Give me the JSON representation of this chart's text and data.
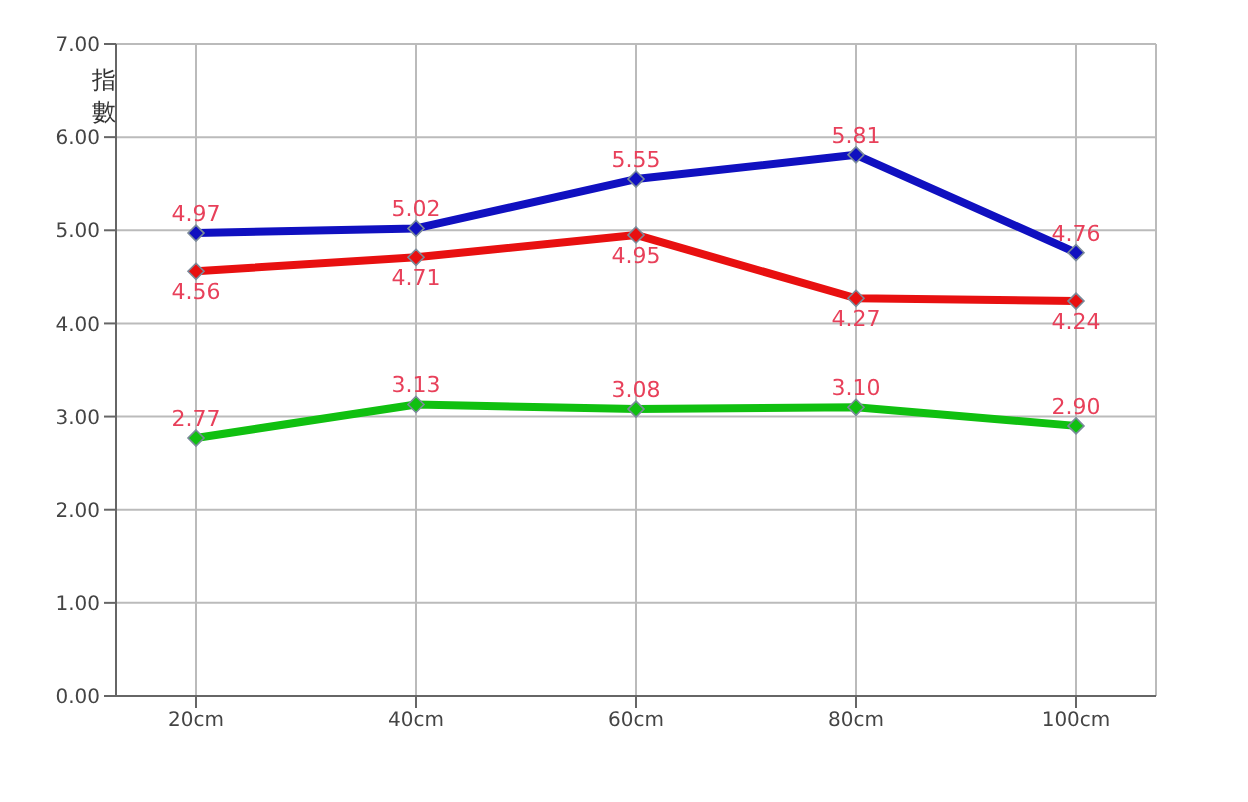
{
  "chart_data": {
    "type": "line",
    "ylabel": "指數",
    "categories": [
      "20cm",
      "40cm",
      "60cm",
      "80cm",
      "100cm"
    ],
    "series": [
      {
        "color": "#1010c0",
        "values": [
          4.97,
          5.02,
          5.55,
          5.81,
          4.76
        ],
        "value_labels": [
          "4.97",
          "5.02",
          "5.55",
          "5.81",
          "4.76"
        ]
      },
      {
        "color": "#e81010",
        "values": [
          4.56,
          4.71,
          4.95,
          4.27,
          4.24
        ],
        "value_labels": [
          "4.56",
          "4.71",
          "4.95",
          "4.27",
          "4.24"
        ]
      },
      {
        "color": "#10c010",
        "values": [
          2.77,
          3.13,
          3.08,
          3.1,
          2.9
        ],
        "value_labels": [
          "2.77",
          "3.13",
          "3.08",
          "3.10",
          "2.90"
        ]
      }
    ],
    "ylim": [
      0,
      7
    ],
    "yticks": [
      {
        "value": 0,
        "label": "0.00"
      },
      {
        "value": 1,
        "label": "1.00"
      },
      {
        "value": 2,
        "label": "2.00"
      },
      {
        "value": 3,
        "label": "3.00"
      },
      {
        "value": 4,
        "label": "4.00"
      },
      {
        "value": 5,
        "label": "5.00"
      },
      {
        "value": 6,
        "label": "6.00"
      },
      {
        "value": 7,
        "label": "7.00"
      }
    ],
    "grid": true,
    "marker": "diamond",
    "line_style": "solid"
  }
}
